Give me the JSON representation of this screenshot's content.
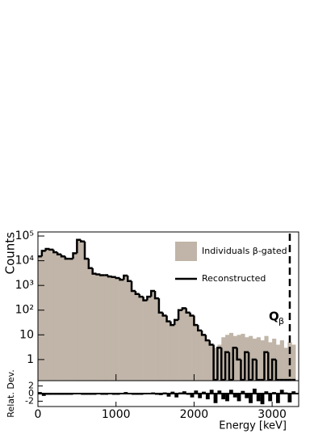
{
  "chart_data": [
    {
      "type": "histogram",
      "ylabel": "Counts",
      "log": true,
      "legend": "upper right",
      "bins": [
        0,
        50,
        100,
        150,
        200,
        250,
        300,
        350,
        400,
        450,
        500,
        550,
        600,
        650,
        700,
        750,
        800,
        850,
        900,
        950,
        1000,
        1050,
        1100,
        1150,
        1200,
        1250,
        1300,
        1350,
        1400,
        1450,
        1500,
        1550,
        1600,
        1650,
        1700,
        1750,
        1800,
        1850,
        1900,
        1950,
        2000,
        2050,
        2100,
        2150,
        2200,
        2250,
        2300,
        2350,
        2400,
        2450,
        2500,
        2550,
        2600,
        2650,
        2700,
        2750,
        2800,
        2850,
        2900,
        2950,
        3000,
        3050,
        3100,
        3150,
        3200,
        3250,
        3300
      ],
      "series": [
        {
          "name": "Individuals β-gated",
          "color": "#c0b5a8",
          "style": "fill",
          "values": [
            15000,
            25000,
            30000,
            28000,
            22000,
            18000,
            15000,
            12000,
            12000,
            20000,
            70000,
            60000,
            12000,
            5000,
            3000,
            2800,
            2600,
            2600,
            2300,
            2200,
            2000,
            1700,
            2500,
            1500,
            600,
            450,
            350,
            250,
            350,
            600,
            300,
            80,
            60,
            35,
            25,
            40,
            100,
            120,
            80,
            60,
            25,
            15,
            10,
            6,
            4,
            3,
            4,
            8,
            10,
            12,
            9,
            10,
            11,
            8,
            9,
            7,
            8,
            6,
            9,
            5,
            7,
            4,
            6,
            3,
            5,
            4
          ]
        },
        {
          "name": "Reconstructed",
          "color": "#000000",
          "style": "step",
          "values": [
            15000,
            25000,
            30000,
            28000,
            22000,
            18000,
            15000,
            12000,
            12000,
            20000,
            70000,
            60000,
            12000,
            5000,
            3000,
            2800,
            2600,
            2600,
            2300,
            2200,
            2000,
            1700,
            2500,
            1500,
            600,
            450,
            350,
            250,
            350,
            600,
            300,
            80,
            60,
            35,
            25,
            40,
            100,
            120,
            80,
            60,
            25,
            15,
            10,
            6,
            4,
            0.15,
            3,
            0.15,
            2,
            0.15,
            3,
            1,
            0.15,
            2,
            0.15,
            1,
            0.15,
            0.15,
            2,
            0.15,
            1,
            0.15,
            0.15,
            0.15,
            0.15,
            0.15
          ]
        }
      ],
      "xlim": [
        0,
        3340
      ],
      "ylim": [
        0.14,
        146000
      ],
      "yticks": [
        {
          "value": 100000,
          "label": "10⁵"
        },
        {
          "value": 10000,
          "label": "10⁴"
        },
        {
          "value": 1000,
          "label": "10³"
        },
        {
          "value": 100,
          "label": "10²"
        },
        10,
        1
      ],
      "annotation": {
        "label": "Q",
        "subscript": "β",
        "x": 3226
      }
    },
    {
      "type": "residual",
      "ylabel": "Relat. Dev.",
      "xlabel": "Energy [keV]",
      "values": [
        0.4,
        -0.6,
        -0.3,
        -0.2,
        -0.1,
        0,
        -0.1,
        -0.2,
        -0.1,
        0.1,
        0.2,
        -0.2,
        -0.3,
        -0.1,
        0,
        0.1,
        -0.1,
        0,
        0.1,
        -0.1,
        0,
        0.2,
        0.4,
        0.1,
        -0.2,
        -0.1,
        0,
        0.1,
        0.2,
        0.3,
        -0.2,
        -0.4,
        0.3,
        -0.8,
        0.5,
        -1,
        0.3,
        0.6,
        -0.3,
        -1,
        0.8,
        -1.2,
        0.5,
        -1.5,
        1,
        -2.5,
        0.8,
        -1.5,
        -2,
        1,
        -1,
        -2,
        0.7,
        -1.2,
        -2.5,
        1.3,
        -2,
        -2.8,
        0.6,
        -2,
        0.4,
        -2.5,
        1,
        0.3,
        -2.3,
        0.6
      ],
      "xlim": [
        0,
        3340
      ],
      "ylim": [
        -3.4,
        3.4
      ],
      "xticks": [
        0,
        1000,
        2000,
        3000
      ],
      "yticks": [
        2,
        0,
        -2
      ]
    }
  ]
}
